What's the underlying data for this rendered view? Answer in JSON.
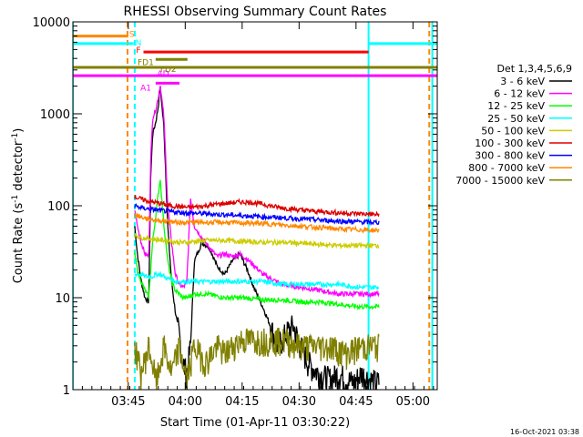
{
  "chart_data": {
    "type": "line",
    "title": "RHESSI Observing Summary Count Rates",
    "xlabel": "Start Time (01-Apr-11 03:30:22)",
    "ylabel_main": "Count Rate (s",
    "ylabel_sup1": "-1",
    "ylabel_mid": " detector",
    "ylabel_sup2": "-1",
    "ylabel_end": ")",
    "timestamp": "16-Oct-2021 03:38",
    "y_scale": "log",
    "ylim": [
      1,
      10000
    ],
    "xlim_minutes": [
      0,
      96
    ],
    "x_ticks": [
      {
        "label": "03:45",
        "minutes": 14.6
      },
      {
        "label": "04:00",
        "minutes": 29.6
      },
      {
        "label": "04:15",
        "minutes": 44.6
      },
      {
        "label": "04:30",
        "minutes": 59.6
      },
      {
        "label": "04:45",
        "minutes": 74.6
      },
      {
        "label": "05:00",
        "minutes": 89.6
      }
    ],
    "y_ticks": [
      {
        "label": "1",
        "value": 1
      },
      {
        "label": "10",
        "value": 10
      },
      {
        "label": "100",
        "value": 100
      },
      {
        "label": "1000",
        "value": 1000
      },
      {
        "label": "10000",
        "value": 10000
      }
    ],
    "legend": {
      "placement": "right",
      "header": "Det 1,3,4,5,6,9",
      "entries": [
        {
          "label": "3 - 6 keV",
          "color": "#000000"
        },
        {
          "label": "6 - 12 keV",
          "color": "#ff00ff"
        },
        {
          "label": "12 - 25 keV",
          "color": "#00ff00"
        },
        {
          "label": "25 - 50 keV",
          "color": "#00ffff"
        },
        {
          "label": "50 - 100 keV",
          "color": "#cccc00"
        },
        {
          "label": "100 - 300 keV",
          "color": "#dd0000"
        },
        {
          "label": "300 - 800 keV",
          "color": "#0000ff"
        },
        {
          "label": "800 - 7000 keV",
          "color": "#ff8800"
        },
        {
          "label": "7000 - 15000 keV",
          "color": "#808000"
        }
      ]
    },
    "flag_bars": [
      {
        "label": "S",
        "color": "#ff8800",
        "value": 7000,
        "x0": 0,
        "x1": 14.6
      },
      {
        "label": "N",
        "color": "#00ffff",
        "value": 5800,
        "x0": 0,
        "x1": 16.0,
        "x0b": 77.9,
        "x1b": 96
      },
      {
        "label": "F",
        "color": "#ff0000",
        "value": 4700,
        "x0": 18.6,
        "x1": 77.9
      },
      {
        "label": "FD1",
        "color": "#808000",
        "value": 3900,
        "x0": 21.8,
        "x1": 30.2
      },
      {
        "label": "FD2",
        "color": "#808000",
        "value": 3200,
        "x0": 0,
        "x1": 96
      },
      {
        "label": "AD",
        "color": "#ff00ff",
        "value": 2600,
        "x0": 0,
        "x1": 96
      },
      {
        "label": "A1",
        "color": "#ff00ff",
        "value": 2150,
        "x0": 21.8,
        "x1": 28.1
      }
    ],
    "vertical_markers": [
      {
        "color": "#00ffff",
        "style": "solid",
        "minutes": 0
      },
      {
        "color": "#ff8800",
        "style": "dashed",
        "minutes": 14.4
      },
      {
        "color": "#00ffff",
        "style": "dashed",
        "minutes": 16.3
      },
      {
        "color": "#00ffff",
        "style": "solid",
        "minutes": 77.9
      },
      {
        "color": "#ff8800",
        "style": "dashed",
        "minutes": 93.9
      },
      {
        "color": "#00ffff",
        "style": "solid",
        "minutes": 94.7
      }
    ],
    "data_window_minutes": [
      16.3,
      80.8
    ],
    "series": [
      {
        "name": "3 - 6 keV",
        "color": "#000000",
        "x": [
          16.3,
          17,
          18,
          19,
          20,
          20.5,
          21,
          21.8,
          22.5,
          23,
          24,
          25,
          26,
          27,
          28,
          29,
          30,
          31,
          32,
          34,
          36,
          38,
          40,
          42,
          44,
          46,
          48,
          50,
          52,
          54,
          56,
          58,
          60,
          62,
          64,
          66,
          68,
          70,
          72,
          74,
          76,
          78,
          80,
          80.8
        ],
        "y": [
          60,
          30,
          15,
          10,
          9,
          200,
          600,
          800,
          1200,
          2000,
          700,
          60,
          15,
          7,
          4,
          2,
          1.5,
          3,
          25,
          40,
          35,
          22,
          18,
          25,
          30,
          20,
          12,
          8,
          5,
          3,
          4,
          5,
          3,
          2,
          1.6,
          1.4,
          1.3,
          1.5,
          1.3,
          1.2,
          1.5,
          1.3,
          1.2,
          1.2
        ]
      },
      {
        "name": "6 - 12 keV",
        "color": "#ff00ff",
        "x": [
          16.3,
          17,
          18,
          19,
          20,
          20.5,
          21,
          21.8,
          22.5,
          23,
          24,
          25,
          26,
          27,
          28,
          29,
          30,
          31,
          32,
          34,
          36,
          38,
          40,
          42,
          44,
          46,
          48,
          50,
          55,
          60,
          65,
          70,
          75,
          80,
          80.8
        ],
        "y": [
          90,
          60,
          40,
          30,
          28,
          300,
          900,
          1100,
          1500,
          2100,
          900,
          100,
          40,
          18,
          14,
          13,
          14,
          120,
          60,
          45,
          35,
          28,
          30,
          28,
          30,
          26,
          22,
          18,
          14,
          13,
          12,
          11,
          11,
          11,
          11
        ]
      },
      {
        "name": "12 - 25 keV",
        "color": "#00ff00",
        "x": [
          16.3,
          17,
          18,
          19,
          20,
          21,
          22,
          23,
          24,
          25,
          26,
          27,
          28,
          29,
          30,
          32,
          35,
          40,
          45,
          50,
          55,
          60,
          65,
          70,
          75,
          80,
          80.8
        ],
        "y": [
          30,
          20,
          15,
          12,
          10,
          40,
          90,
          200,
          60,
          25,
          15,
          12,
          11,
          10,
          10,
          11,
          11,
          10,
          10,
          9.5,
          9.5,
          9,
          9,
          8.5,
          8,
          8,
          8
        ]
      },
      {
        "name": "25 - 50 keV",
        "color": "#00ffff",
        "x": [
          16.3,
          17,
          18,
          19,
          20,
          21,
          22,
          23,
          24,
          25,
          26,
          27,
          28,
          29,
          30,
          32,
          35,
          40,
          45,
          50,
          55,
          60,
          65,
          70,
          75,
          80,
          80.8
        ],
        "y": [
          18,
          18,
          18,
          17,
          17,
          17,
          18,
          18,
          17,
          16,
          16,
          15,
          15,
          15,
          15,
          15,
          15,
          15,
          15,
          15,
          14,
          14,
          14,
          14,
          13,
          13,
          13
        ]
      },
      {
        "name": "50 - 100 keV",
        "color": "#cccc00",
        "x": [
          16.3,
          18,
          20,
          22,
          24,
          26,
          28,
          30,
          32,
          35,
          40,
          45,
          50,
          55,
          60,
          65,
          70,
          75,
          80,
          80.8
        ],
        "y": [
          48,
          45,
          44,
          43,
          42,
          41,
          40,
          40,
          41,
          42,
          42,
          41,
          40,
          40,
          39,
          38,
          37,
          37,
          37,
          37
        ]
      },
      {
        "name": "100 - 300 keV",
        "color": "#dd0000",
        "x": [
          16.3,
          18,
          20,
          22,
          24,
          26,
          28,
          30,
          32,
          35,
          38,
          41,
          44,
          47,
          50,
          53,
          56,
          60,
          64,
          68,
          72,
          76,
          80,
          80.8
        ],
        "y": [
          125,
          118,
          112,
          108,
          104,
          100,
          98,
          96,
          97,
          100,
          104,
          107,
          110,
          109,
          104,
          98,
          94,
          90,
          87,
          85,
          83,
          82,
          80,
          80
        ]
      },
      {
        "name": "300 - 800 keV",
        "color": "#0000ff",
        "x": [
          16.3,
          18,
          20,
          22,
          24,
          26,
          28,
          30,
          32,
          35,
          40,
          45,
          50,
          55,
          60,
          65,
          70,
          75,
          80,
          80.8
        ],
        "y": [
          100,
          95,
          92,
          90,
          88,
          86,
          85,
          84,
          83,
          82,
          80,
          78,
          76,
          74,
          72,
          70,
          68,
          67,
          66,
          66
        ]
      },
      {
        "name": "800 - 7000 keV",
        "color": "#ff8800",
        "x": [
          16.3,
          18,
          20,
          22,
          24,
          26,
          28,
          30,
          32,
          35,
          40,
          45,
          50,
          55,
          60,
          65,
          70,
          75,
          80,
          80.8
        ],
        "y": [
          80,
          75,
          72,
          70,
          68,
          67,
          66,
          66,
          66,
          66,
          66,
          65,
          64,
          62,
          60,
          58,
          56,
          55,
          54,
          54
        ]
      },
      {
        "name": "7000 - 15000 keV",
        "color": "#808000",
        "x": [
          16.3,
          18,
          20,
          22,
          24,
          26,
          28,
          30,
          32,
          35,
          38,
          40,
          44,
          48,
          52,
          56,
          60,
          64,
          68,
          72,
          76,
          80,
          80.8
        ],
        "y": [
          3,
          1.5,
          3,
          1.2,
          3,
          1.5,
          3,
          1.3,
          3,
          2,
          3,
          2.5,
          3.5,
          3.5,
          3.5,
          3.5,
          3,
          3,
          3,
          2.5,
          3,
          3,
          3
        ]
      }
    ]
  }
}
